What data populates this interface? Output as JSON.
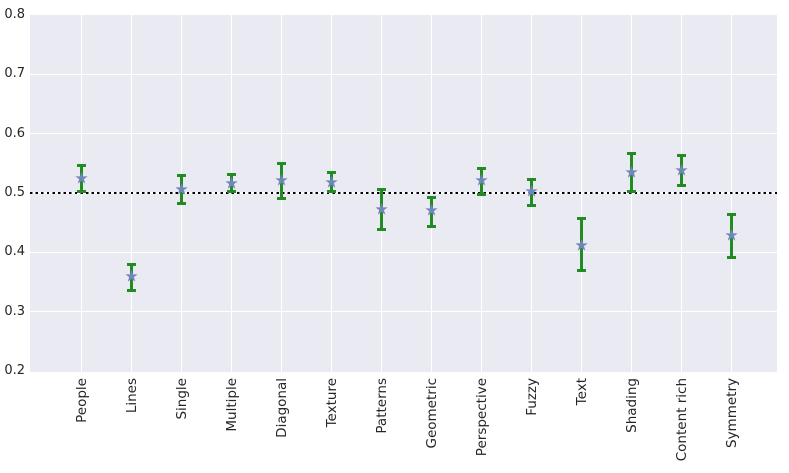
{
  "chart_data": {
    "type": "scatter",
    "subtype": "category-means-with-error-bars",
    "title": "",
    "xlabel": "",
    "ylabel": "",
    "legend": "none",
    "grid": "white gridlines on gray panel",
    "ylim": [
      0.2,
      0.8
    ],
    "yticks": [
      0.2,
      0.3,
      0.4,
      0.5,
      0.6,
      0.7,
      0.8
    ],
    "reference_line_y": 0.5,
    "reference_line_style": "dotted black",
    "marker": "star",
    "categories": [
      "People",
      "Lines",
      "Single",
      "Multiple",
      "Diagonal",
      "Texture",
      "Patterns",
      "Geometric",
      "Perspective",
      "Fuzzy",
      "Text",
      "Shading",
      "Content rich",
      "Symmetry"
    ],
    "values": [
      0.524,
      0.358,
      0.505,
      0.516,
      0.521,
      0.517,
      0.471,
      0.469,
      0.521,
      0.502,
      0.411,
      0.534,
      0.537,
      0.427
    ],
    "error_low": [
      0.502,
      0.335,
      0.482,
      0.502,
      0.491,
      0.502,
      0.438,
      0.444,
      0.497,
      0.479,
      0.369,
      0.502,
      0.513,
      0.392
    ],
    "error_high": [
      0.547,
      0.38,
      0.529,
      0.532,
      0.55,
      0.534,
      0.506,
      0.492,
      0.541,
      0.522,
      0.457,
      0.566,
      0.564,
      0.464
    ],
    "colors": {
      "plot_background": "#eaeaf2",
      "figure_background": "#ffffff",
      "gridline": "#ffffff",
      "errorbar": "#228b22",
      "marker": "#6f87ba",
      "reference_line": "#000000",
      "tick_label": "#262626"
    }
  }
}
